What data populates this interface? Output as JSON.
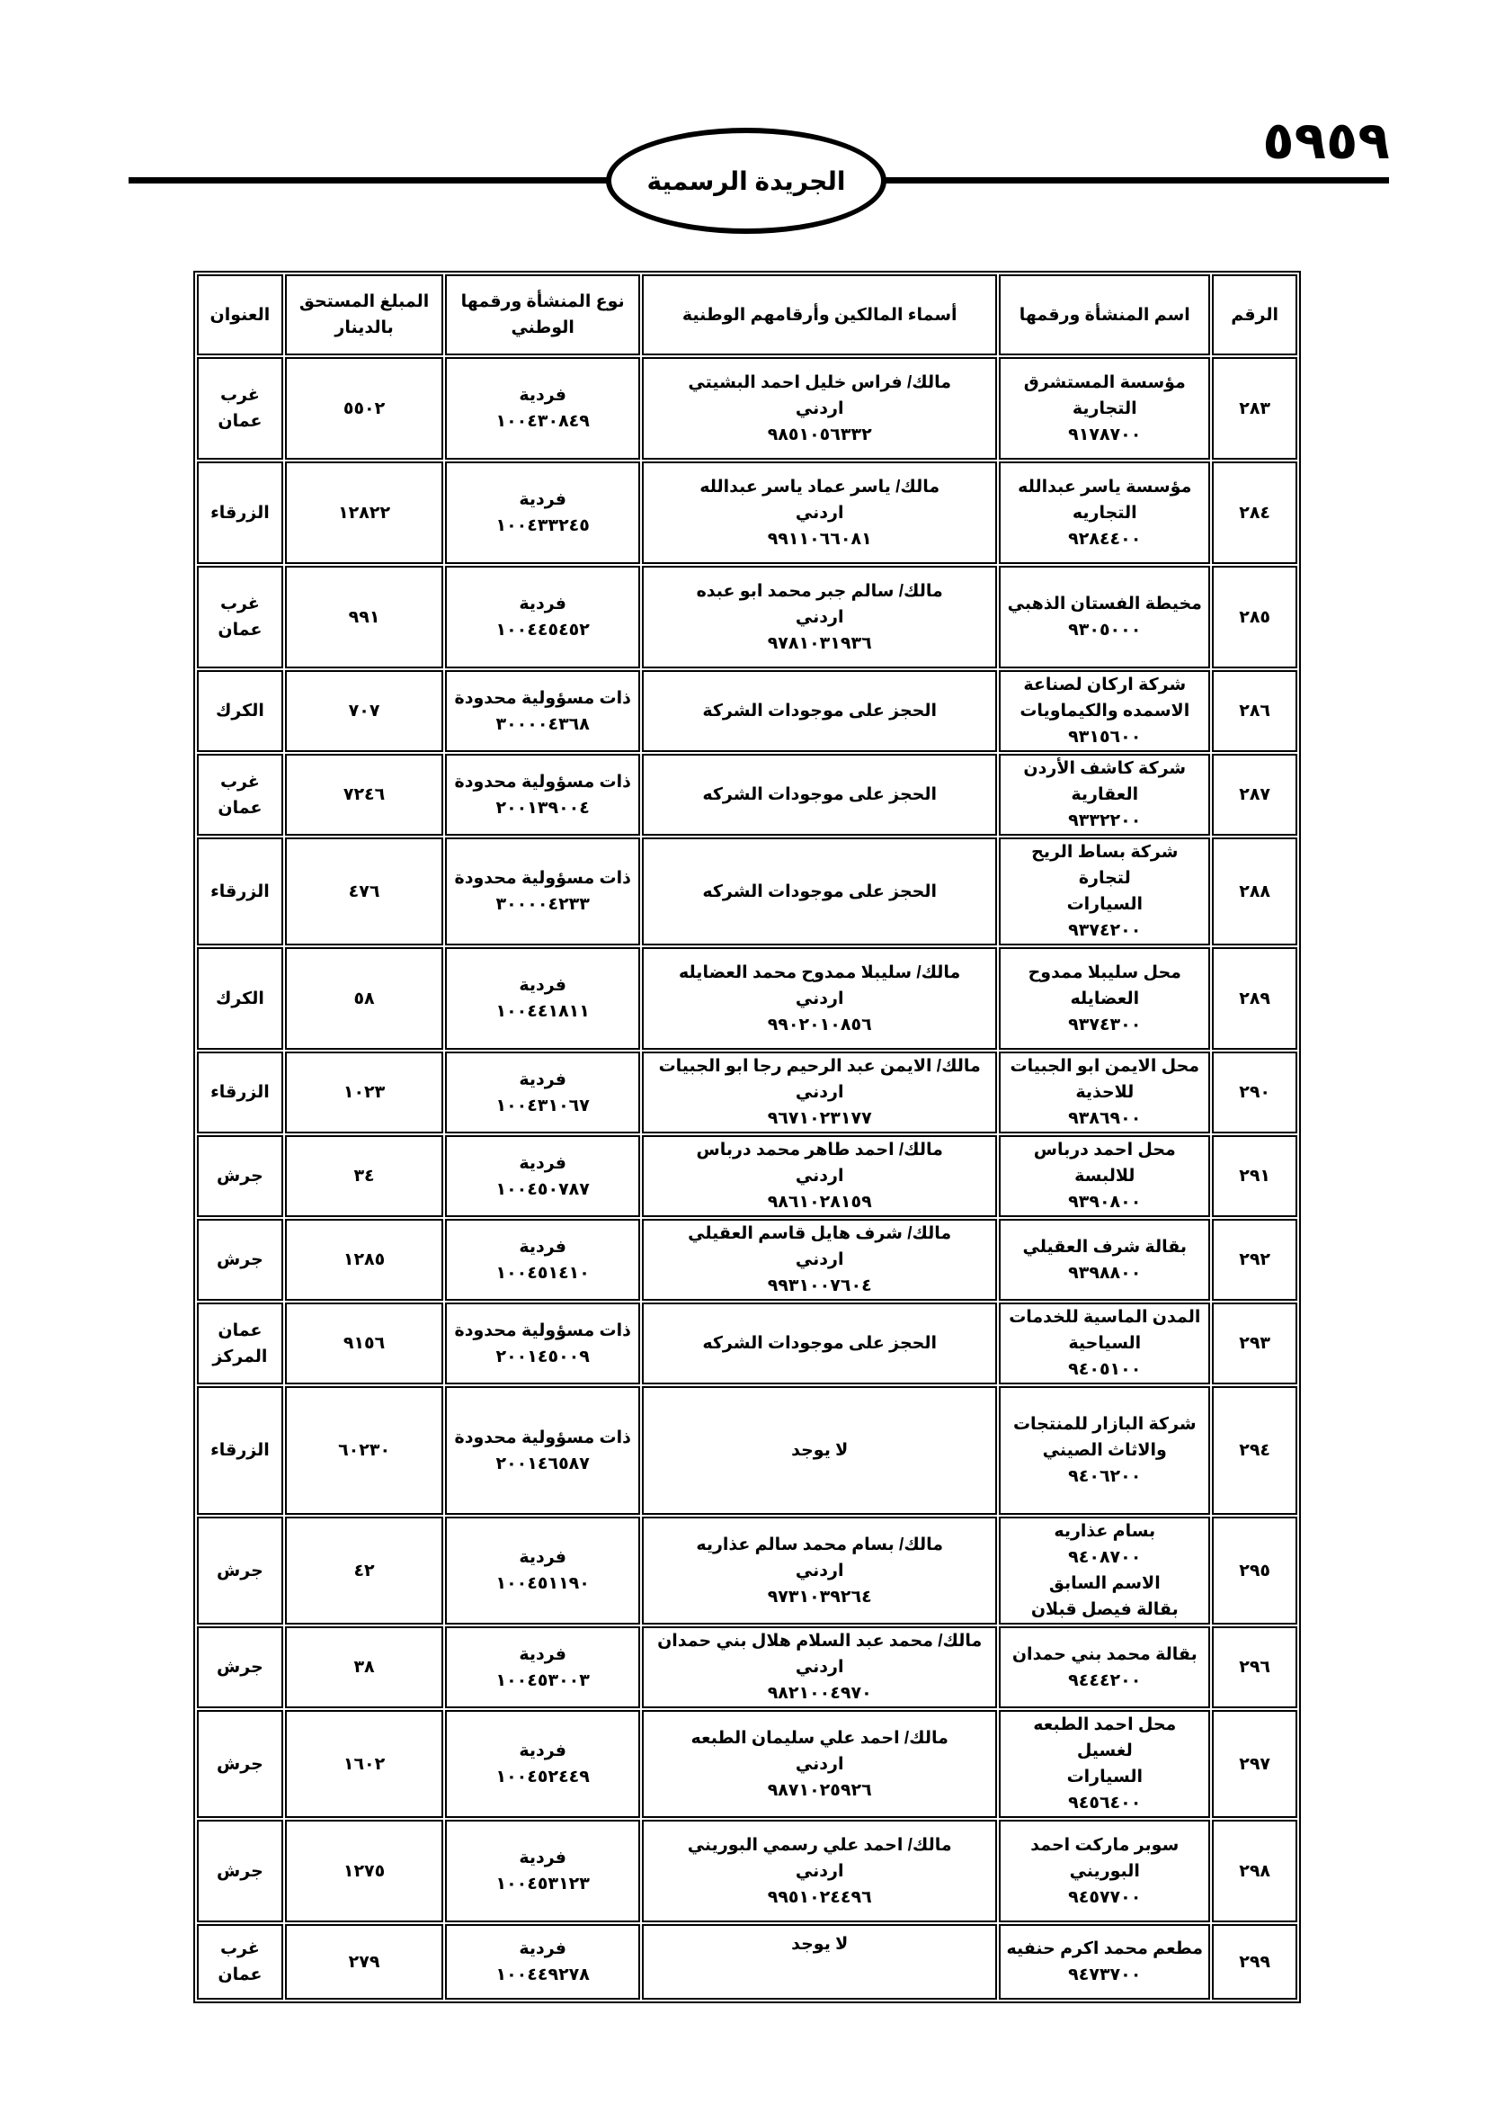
{
  "header": {
    "title": "الجريدة الرسمية",
    "page_number": "٥٩٥٩"
  },
  "table": {
    "columns": [
      "الرقم",
      "اسم المنشأة ورقمها",
      "أسماء المالكين وأرقامهم الوطنية",
      "نوع المنشأة ورقمها الوطني",
      "المبلغ المستحق بالدينار",
      "العنوان"
    ],
    "rows": [
      {
        "num": "٢٨٣",
        "name": [
          "مؤسسة المستشرق",
          "التجارية",
          "٩١٧٨٧٠٠"
        ],
        "owners": [
          "مالك/ فراس خليل احمد البشيتي",
          "اردني",
          "٩٨٥١٠٥٦٣٣٢"
        ],
        "type": "فردية",
        "type_id": "١٠٠٤٣٠٨٤٩",
        "amount": "٥٥٠٢",
        "address": [
          "غرب",
          "عمان"
        ]
      },
      {
        "num": "٢٨٤",
        "name": [
          "مؤسسة ياسر عبدالله",
          "التجاريه",
          "٩٢٨٤٤٠٠"
        ],
        "owners": [
          "مالك/ ياسر عماد ياسر عبدالله",
          "اردني",
          "٩٩١١٠٦٦٠٨١"
        ],
        "type": "فردية",
        "type_id": "١٠٠٤٣٣٢٤٥",
        "amount": "١٢٨٢٢",
        "address": [
          "الزرقاء"
        ]
      },
      {
        "num": "٢٨٥",
        "name": [
          "مخيطة الفستان الذهبي",
          "٩٣٠٥٠٠٠"
        ],
        "owners": [
          "مالك/ سالم جبر محمد ابو عبده",
          "اردني",
          "٩٧٨١٠٣١٩٣٦"
        ],
        "type": "فردية",
        "type_id": "١٠٠٤٤٥٤٥٢",
        "amount": "٩٩١",
        "address": [
          "غرب",
          "عمان"
        ]
      },
      {
        "num": "٢٨٦",
        "name": [
          "شركة اركان لصناعة",
          "الاسمده والكيماويات",
          "٩٣١٥٦٠٠"
        ],
        "owners": [
          "الحجز على موجودات الشركة"
        ],
        "type": "ذات مسؤولية محدودة",
        "type_id": "٣٠٠٠٠٤٣٦٨",
        "amount": "٧٠٧",
        "address": [
          "الكرك"
        ]
      },
      {
        "num": "٢٨٧",
        "name": [
          "شركة كاشف الأردن",
          "العقارية",
          "٩٣٣٢٢٠٠"
        ],
        "owners": [
          "الحجز على موجودات الشركه"
        ],
        "type": "ذات مسؤولية محدودة",
        "type_id": "٢٠٠١٣٩٠٠٤",
        "amount": "٧٢٤٦",
        "address": [
          "غرب",
          "عمان"
        ]
      },
      {
        "num": "٢٨٨",
        "name": [
          "شركة بساط الريح لتجارة",
          "السيارات",
          "٩٣٧٤٢٠٠"
        ],
        "owners": [
          "الحجز على موجودات الشركه"
        ],
        "type": "ذات مسؤولية محدودة",
        "type_id": "٣٠٠٠٠٤٢٣٣",
        "amount": "٤٧٦",
        "address": [
          "الزرقاء"
        ]
      },
      {
        "num": "٢٨٩",
        "name": [
          "محل سليبلا ممدوح",
          "العضايله",
          "٩٣٧٤٣٠٠"
        ],
        "owners": [
          "مالك/ سليبلا ممدوح محمد العضايله",
          "اردني",
          "٩٩٠٢٠١٠٨٥٦"
        ],
        "type": "فردية",
        "type_id": "١٠٠٤٤١٨١١",
        "amount": "٥٨",
        "address": [
          "الكرك"
        ]
      },
      {
        "num": "٢٩٠",
        "name": [
          "محل الايمن ابو الجبيات",
          "للاحذية",
          "٩٣٨٦٩٠٠"
        ],
        "owners": [
          "مالك/ الايمن عبد الرحيم رجا ابو الجبيات",
          "اردني",
          "٩٦٧١٠٢٣١٧٧"
        ],
        "type": "فردية",
        "type_id": "١٠٠٤٣١٠٦٧",
        "amount": "١٠٢٣",
        "address": [
          "الزرقاء"
        ]
      },
      {
        "num": "٢٩١",
        "name": [
          "محل احمد  درباس",
          "للالبسة",
          "٩٣٩٠٨٠٠"
        ],
        "owners": [
          "مالك/ احمد طاهر محمد درباس",
          "اردني",
          "٩٨٦١٠٢٨١٥٩"
        ],
        "type": "فردية",
        "type_id": "١٠٠٤٥٠٧٨٧",
        "amount": "٣٤",
        "address": [
          "جرش"
        ]
      },
      {
        "num": "٢٩٢",
        "name": [
          "بقالة شرف العقيلي",
          "٩٣٩٨٨٠٠"
        ],
        "owners": [
          "مالك/ شرف هايل قاسم العقيلي",
          "اردني",
          "٩٩٣١٠٠٧٦٠٤"
        ],
        "type": "فردية",
        "type_id": "١٠٠٤٥١٤١٠",
        "amount": "١٢٨٥",
        "address": [
          "جرش"
        ]
      },
      {
        "num": "٢٩٣",
        "name": [
          "المدن الماسية للخدمات",
          "السياحية",
          "٩٤٠٥١٠٠"
        ],
        "owners": [
          "الحجز على موجودات الشركه"
        ],
        "type": "ذات مسؤولية محدودة",
        "type_id": "٢٠٠١٤٥٠٠٩",
        "amount": "٩١٥٦",
        "address": [
          "عمان",
          "المركز"
        ]
      },
      {
        "num": "٢٩٤",
        "name": [
          "شركة البازار للمنتجات",
          "والاثاث الصيني",
          "٩٤٠٦٢٠٠"
        ],
        "owners": [
          "لا يوجد"
        ],
        "type": "ذات مسؤولية محدودة",
        "type_id": "٢٠٠١٤٦٥٨٧",
        "amount": "٦٠٢٣٠",
        "address": [
          "الزرقاء"
        ]
      },
      {
        "num": "٢٩٥",
        "name": [
          "بسام عذاريه",
          "٩٤٠٨٧٠٠",
          "الاسم السابق",
          "بقالة فيصل قبلان"
        ],
        "owners": [
          "مالك/ بسام محمد سالم عذاريه",
          "اردني",
          "٩٧٣١٠٣٩٢٦٤"
        ],
        "type": "فردية",
        "type_id": "١٠٠٤٥١١٩٠",
        "amount": "٤٢",
        "address": [
          "جرش"
        ]
      },
      {
        "num": "٢٩٦",
        "name": [
          "بقالة محمد بني حمدان",
          "٩٤٤٤٢٠٠"
        ],
        "owners": [
          "مالك/ محمد عبد السلام هلال بني حمدان",
          "اردني",
          "٩٨٢١٠٠٤٩٧٠"
        ],
        "type": "فردية",
        "type_id": "١٠٠٤٥٣٠٠٣",
        "amount": "٣٨",
        "address": [
          "جرش"
        ]
      },
      {
        "num": "٢٩٧",
        "name": [
          "محل احمد الطبعه لغسيل",
          "السيارات",
          "٩٤٥٦٤٠٠"
        ],
        "owners": [
          "مالك/ احمد علي سليمان الطبعه",
          "اردني",
          "٩٨٧١٠٢٥٩٢٦"
        ],
        "type": "فردية",
        "type_id": "١٠٠٤٥٢٤٤٩",
        "amount": "١٦٠٢",
        "address": [
          "جرش"
        ]
      },
      {
        "num": "٢٩٨",
        "name": [
          "سوبر ماركت احمد",
          "البوريني",
          "٩٤٥٧٧٠٠"
        ],
        "owners": [
          "مالك/ احمد علي رسمي البوريني",
          "اردني",
          "٩٩٥١٠٢٤٤٩٦"
        ],
        "type": "فردية",
        "type_id": "١٠٠٤٥٣١٢٣",
        "amount": "١٢٧٥",
        "address": [
          "جرش"
        ]
      },
      {
        "num": "٢٩٩",
        "name": [
          "مطعم محمد اكرم حنفيه",
          "٩٤٧٣٧٠٠"
        ],
        "owners": [
          "لا يوجد"
        ],
        "type": "فردية",
        "type_id": "١٠٠٤٤٩٢٧٨",
        "amount": "٢٧٩",
        "address": [
          "غرب",
          "عمان"
        ]
      }
    ]
  }
}
